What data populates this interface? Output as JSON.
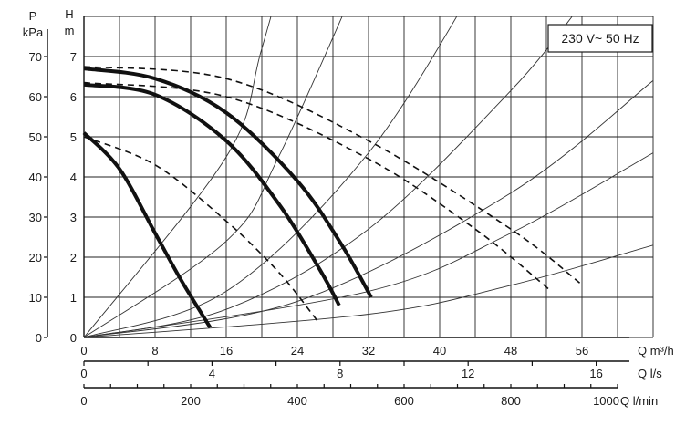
{
  "chart_data": {
    "type": "line",
    "label_box": "230 V~ 50 Hz",
    "left_axis_p": {
      "label": "P",
      "unit": "kPa",
      "ticks": [
        0,
        10,
        20,
        30,
        40,
        50,
        60,
        70
      ],
      "range": [
        0,
        80
      ]
    },
    "left_axis_h": {
      "label": "H",
      "unit": "m",
      "ticks": [
        0,
        1,
        2,
        3,
        4,
        5,
        6,
        7
      ],
      "range": [
        0,
        8
      ]
    },
    "x_axis_m3h": {
      "label": "Q m³/h",
      "ticks": [
        0,
        8,
        16,
        24,
        32,
        40,
        48,
        56
      ],
      "range": [
        0,
        64
      ]
    },
    "x_axis_ls": {
      "label": "Q l/s",
      "ticks": [
        0,
        4,
        8,
        12,
        16
      ],
      "range": [
        0,
        17.78
      ]
    },
    "x_axis_lmin": {
      "label": "Q l/min",
      "ticks": [
        0,
        200,
        400,
        600,
        800,
        1000
      ],
      "range": [
        0,
        1066.7
      ]
    },
    "grid": true,
    "series": [
      {
        "style": "solid-bold",
        "x": [
          0,
          4,
          8,
          11,
          14.2
        ],
        "y": [
          5.1,
          4.2,
          2.6,
          1.4,
          0.25
        ]
      },
      {
        "style": "solid-bold",
        "x": [
          0,
          8,
          16,
          22,
          26.5,
          28.7
        ],
        "y": [
          6.3,
          6.05,
          4.9,
          3.3,
          1.7,
          0.8
        ]
      },
      {
        "style": "solid-bold",
        "x": [
          0,
          8,
          16,
          24,
          29,
          32.3
        ],
        "y": [
          6.7,
          6.45,
          5.6,
          3.9,
          2.3,
          1.0
        ]
      },
      {
        "style": "dashed",
        "x": [
          0,
          8,
          16,
          22,
          26.3
        ],
        "y": [
          5.0,
          4.3,
          2.9,
          1.6,
          0.4
        ]
      },
      {
        "style": "dashed",
        "x": [
          0,
          16,
          32,
          44,
          52.3
        ],
        "y": [
          6.35,
          6.0,
          4.45,
          2.7,
          1.2
        ]
      },
      {
        "style": "dashed",
        "x": [
          0,
          16,
          32,
          48,
          55.8
        ],
        "y": [
          6.75,
          6.45,
          4.9,
          2.7,
          1.35
        ]
      }
    ],
    "system_curves_h_at_q": [
      {
        "x": [
          0,
          16,
          20,
          24.7
        ],
        "y": [
          0,
          4.5,
          7.2,
          11
        ]
      },
      {
        "x": [
          0,
          16,
          22,
          31.8
        ],
        "y": [
          0,
          2.4,
          4.55,
          9.4
        ]
      },
      {
        "x": [
          0,
          16,
          32,
          44.6
        ],
        "y": [
          0,
          1.15,
          4.6,
          9.0
        ]
      },
      {
        "x": [
          0,
          16,
          32,
          48,
          55.6
        ],
        "y": [
          0,
          0.7,
          2.7,
          6.15,
          8.2
        ]
      },
      {
        "x": [
          0,
          24,
          48,
          64
        ],
        "y": [
          0,
          0.9,
          3.6,
          6.4
        ]
      },
      {
        "x": [
          0,
          32,
          48,
          64
        ],
        "y": [
          0,
          1.15,
          2.6,
          4.6
        ]
      },
      {
        "x": [
          0,
          32,
          48,
          64
        ],
        "y": [
          0,
          0.58,
          1.3,
          2.3
        ]
      }
    ]
  }
}
